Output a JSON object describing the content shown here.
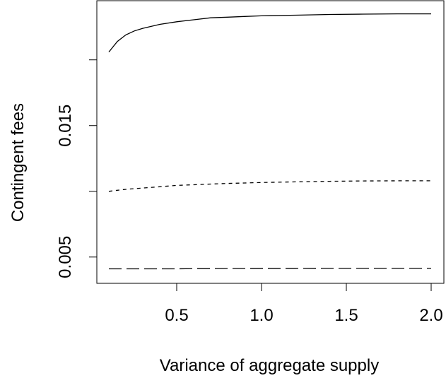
{
  "chart_data": {
    "type": "line",
    "title": "",
    "xlabel": "Variance of aggregate supply",
    "ylabel": "Contingent fees",
    "xlim": [
      0.1,
      2.0
    ],
    "ylim": [
      0.003,
      0.0245
    ],
    "x_ticks": [
      0.5,
      1.0,
      1.5,
      2.0
    ],
    "x_tick_labels": [
      "0.5",
      "1.0",
      "1.5",
      "2.0"
    ],
    "y_ticks": [
      0.005,
      0.01,
      0.015,
      0.02
    ],
    "y_tick_labels": [
      "0.005",
      "",
      "0.015",
      ""
    ],
    "grid": false,
    "legend": "none",
    "x": [
      0.1,
      0.15,
      0.2,
      0.25,
      0.3,
      0.4,
      0.5,
      0.6,
      0.7,
      0.8,
      0.9,
      1.0,
      1.2,
      1.4,
      1.6,
      1.8,
      2.0
    ],
    "series": [
      {
        "style": "solid",
        "values": [
          0.0206,
          0.0214,
          0.0219,
          0.0222,
          0.0224,
          0.0227,
          0.0229,
          0.02305,
          0.0232,
          0.02325,
          0.0233,
          0.02335,
          0.0234,
          0.02345,
          0.02348,
          0.0235,
          0.0235
        ]
      },
      {
        "style": "dashed",
        "values": [
          0.01,
          0.01008,
          0.01015,
          0.0102,
          0.01025,
          0.01035,
          0.01045,
          0.0105,
          0.01055,
          0.0106,
          0.01063,
          0.01067,
          0.01072,
          0.01076,
          0.01079,
          0.0108,
          0.0108
        ]
      },
      {
        "style": "longdash",
        "values": [
          0.0041,
          0.0041,
          0.0041,
          0.0041,
          0.0041,
          0.0041,
          0.0041,
          0.00412,
          0.00412,
          0.00413,
          0.00413,
          0.00414,
          0.00414,
          0.00415,
          0.00415,
          0.00415,
          0.00415
        ]
      }
    ]
  }
}
